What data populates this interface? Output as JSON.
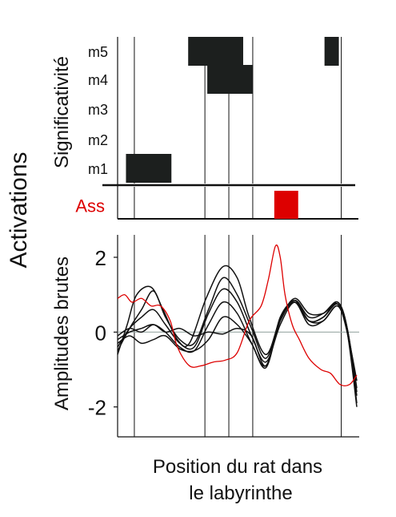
{
  "chart_data": [
    {
      "type": "heatmap",
      "panel": "significance",
      "ylabel": "Significativité",
      "rows": [
        "m5",
        "m4",
        "m3",
        "m2",
        "m1",
        "Ass"
      ],
      "x_range": [
        0,
        100
      ],
      "significant_intervals": {
        "m5": [
          [
            29.5,
            52.5
          ],
          [
            86.5,
            92.5
          ]
        ],
        "m4": [
          [
            37.5,
            56.5
          ]
        ],
        "m3": [],
        "m2": [],
        "m1": [
          [
            3.5,
            22.5
          ]
        ],
        "Ass": [
          [
            65.5,
            75.5
          ]
        ]
      }
    },
    {
      "type": "line",
      "panel": "raw-amplitudes",
      "ylabel": "Amplitudes brutes",
      "xlabel": "Position du rat dans le labyrinthe",
      "x_range": [
        0,
        100
      ],
      "ylim": [
        -2.8,
        2.6
      ],
      "yticks": [
        -2,
        0,
        2
      ],
      "reference_line_y": 0,
      "series": [
        {
          "color": "#111111",
          "points": [
            [
              0,
              -0.6
            ],
            [
              4,
              0.2
            ],
            [
              8,
              1.0
            ],
            [
              14,
              1.2
            ],
            [
              19,
              0.6
            ],
            [
              25,
              -0.2
            ],
            [
              30,
              -0.3
            ],
            [
              37,
              0.9
            ],
            [
              44,
              1.75
            ],
            [
              50,
              1.45
            ],
            [
              55,
              0.4
            ],
            [
              62,
              -0.6
            ],
            [
              68,
              0.35
            ],
            [
              74,
              0.9
            ],
            [
              80,
              0.5
            ],
            [
              86,
              0.5
            ],
            [
              92,
              0.75
            ],
            [
              96,
              0.0
            ],
            [
              100,
              -2.0
            ]
          ]
        },
        {
          "color": "#111111",
          "points": [
            [
              0,
              -0.5
            ],
            [
              5,
              0.1
            ],
            [
              10,
              0.6
            ],
            [
              15,
              1.1
            ],
            [
              20,
              0.4
            ],
            [
              26,
              -0.2
            ],
            [
              32,
              -0.3
            ],
            [
              38,
              0.6
            ],
            [
              44,
              1.45
            ],
            [
              50,
              1.0
            ],
            [
              56,
              0.1
            ],
            [
              62,
              -0.7
            ],
            [
              68,
              0.3
            ],
            [
              74,
              0.85
            ],
            [
              80,
              0.4
            ],
            [
              86,
              0.5
            ],
            [
              92,
              0.8
            ],
            [
              96,
              0.1
            ],
            [
              100,
              -1.6
            ]
          ]
        },
        {
          "color": "#111111",
          "points": [
            [
              0,
              -0.4
            ],
            [
              5,
              0.1
            ],
            [
              10,
              0.4
            ],
            [
              15,
              0.6
            ],
            [
              20,
              0.2
            ],
            [
              26,
              -0.3
            ],
            [
              32,
              -0.4
            ],
            [
              38,
              0.5
            ],
            [
              44,
              1.15
            ],
            [
              50,
              0.8
            ],
            [
              56,
              -0.1
            ],
            [
              62,
              -0.8
            ],
            [
              68,
              0.2
            ],
            [
              74,
              0.8
            ],
            [
              80,
              0.3
            ],
            [
              86,
              0.4
            ],
            [
              92,
              0.8
            ],
            [
              96,
              0.1
            ],
            [
              100,
              -1.5
            ]
          ]
        },
        {
          "color": "#111111",
          "points": [
            [
              0,
              -0.2
            ],
            [
              5,
              0.0
            ],
            [
              10,
              0.1
            ],
            [
              15,
              0.2
            ],
            [
              20,
              0.0
            ],
            [
              26,
              -0.4
            ],
            [
              32,
              -0.5
            ],
            [
              38,
              0.2
            ],
            [
              44,
              0.8
            ],
            [
              50,
              0.5
            ],
            [
              56,
              -0.3
            ],
            [
              62,
              -0.9
            ],
            [
              68,
              0.3
            ],
            [
              74,
              0.8
            ],
            [
              80,
              0.2
            ],
            [
              86,
              0.3
            ],
            [
              92,
              0.7
            ],
            [
              96,
              0.0
            ],
            [
              100,
              -1.3
            ]
          ]
        },
        {
          "color": "#111111",
          "points": [
            [
              0,
              -0.3
            ],
            [
              5,
              -0.1
            ],
            [
              10,
              -0.3
            ],
            [
              15,
              -0.2
            ],
            [
              20,
              -0.1
            ],
            [
              26,
              -0.45
            ],
            [
              32,
              -0.5
            ],
            [
              38,
              -0.2
            ],
            [
              44,
              0.4
            ],
            [
              50,
              0.2
            ],
            [
              56,
              -0.3
            ],
            [
              62,
              -0.95
            ],
            [
              68,
              0.35
            ],
            [
              74,
              0.85
            ],
            [
              80,
              0.3
            ],
            [
              86,
              0.3
            ],
            [
              92,
              0.7
            ],
            [
              96,
              0.0
            ],
            [
              100,
              -1.7
            ]
          ]
        },
        {
          "color": "#111111",
          "points": [
            [
              0,
              -0.1
            ],
            [
              5,
              0.1
            ],
            [
              10,
              0.0
            ],
            [
              15,
              0.2
            ],
            [
              20,
              0.0
            ],
            [
              26,
              0.1
            ],
            [
              32,
              -0.1
            ],
            [
              38,
              0.0
            ],
            [
              44,
              -0.05
            ],
            [
              50,
              0.1
            ],
            [
              56,
              -0.1
            ],
            [
              62,
              -0.9
            ],
            [
              68,
              0.4
            ],
            [
              74,
              0.8
            ],
            [
              80,
              0.3
            ],
            [
              86,
              0.4
            ],
            [
              92,
              0.75
            ],
            [
              96,
              0.1
            ],
            [
              100,
              -1.9
            ]
          ]
        },
        {
          "color": "#dd0000",
          "points": [
            [
              0,
              0.9
            ],
            [
              3,
              1.0
            ],
            [
              6,
              0.8
            ],
            [
              10,
              0.9
            ],
            [
              14,
              0.7
            ],
            [
              18,
              0.7
            ],
            [
              22,
              0.3
            ],
            [
              25,
              -0.4
            ],
            [
              30,
              -0.9
            ],
            [
              35,
              -0.9
            ],
            [
              40,
              -0.8
            ],
            [
              45,
              -0.75
            ],
            [
              50,
              -0.55
            ],
            [
              55,
              0.3
            ],
            [
              60,
              0.7
            ],
            [
              63,
              1.4
            ],
            [
              66,
              2.3
            ],
            [
              68,
              2.0
            ],
            [
              70,
              1.0
            ],
            [
              73,
              0.2
            ],
            [
              76,
              -0.2
            ],
            [
              80,
              -0.7
            ],
            [
              85,
              -1.0
            ],
            [
              89,
              -1.1
            ],
            [
              93,
              -1.4
            ],
            [
              97,
              -1.4
            ],
            [
              100,
              -1.15
            ]
          ]
        }
      ]
    }
  ],
  "labels": {
    "activations": "Activations",
    "significance_ylabel": "Significativité",
    "raw_ylabel": "Amplitudes brutes",
    "xlabel_line1": "Position du rat dans",
    "xlabel_line2": "le labyrinthe"
  },
  "vertical_markers_x": [
    7,
    36.5,
    46.5,
    56.5,
    93.5
  ],
  "colors": {
    "ink": "#111111",
    "accent": "#dd0000",
    "zero_line": "#9aa9a6",
    "block": "#1c1f1e"
  }
}
